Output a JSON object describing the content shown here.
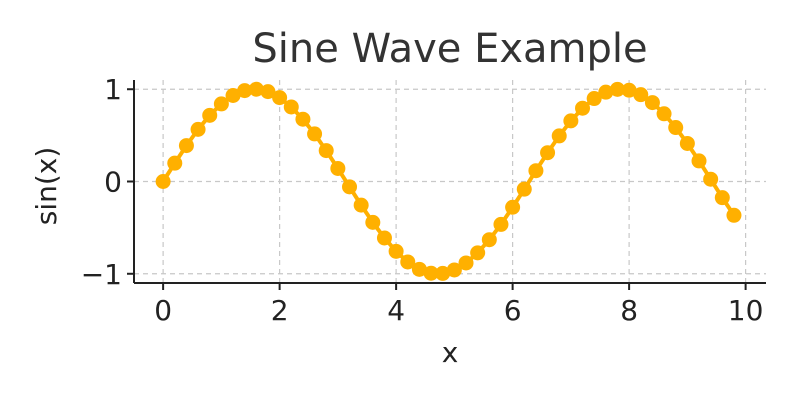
{
  "chart_data": {
    "type": "line",
    "title": "Sine Wave Example",
    "xlabel": "x",
    "ylabel": "sin(x)",
    "xlim": [
      -0.5,
      10.35
    ],
    "ylim": [
      -1.1,
      1.1
    ],
    "xticks": [
      0,
      2,
      4,
      6,
      8,
      10
    ],
    "xtick_labels": [
      "0",
      "2",
      "4",
      "6",
      "8",
      "10"
    ],
    "yticks": [
      -1,
      0,
      1
    ],
    "ytick_labels": [
      "−1",
      "0",
      "1"
    ],
    "grid": true,
    "colors": {
      "series": "#FFB000"
    },
    "series": [
      {
        "marker": "circle",
        "x": [
          0,
          0.2,
          0.4,
          0.6,
          0.8,
          1.0,
          1.2,
          1.4,
          1.6,
          1.8,
          2.0,
          2.2,
          2.4,
          2.6,
          2.8,
          3.0,
          3.2,
          3.4,
          3.6,
          3.8,
          4.0,
          4.2,
          4.4,
          4.6,
          4.8,
          5.0,
          5.2,
          5.4,
          5.6,
          5.8,
          6.0,
          6.2,
          6.4,
          6.6,
          6.8,
          7.0,
          7.2,
          7.4,
          7.6,
          7.8,
          8.0,
          8.2,
          8.4,
          8.6,
          8.8,
          9.0,
          9.2,
          9.4,
          9.6,
          9.8
        ],
        "y": [
          0.0,
          0.199,
          0.389,
          0.565,
          0.717,
          0.841,
          0.932,
          0.985,
          1.0,
          0.974,
          0.909,
          0.808,
          0.675,
          0.516,
          0.335,
          0.141,
          -0.058,
          -0.256,
          -0.443,
          -0.612,
          -0.757,
          -0.872,
          -0.952,
          -0.994,
          -0.996,
          -0.959,
          -0.883,
          -0.773,
          -0.631,
          -0.465,
          -0.279,
          -0.083,
          0.117,
          0.312,
          0.494,
          0.657,
          0.794,
          0.899,
          0.968,
          0.999,
          0.989,
          0.941,
          0.855,
          0.734,
          0.585,
          0.412,
          0.223,
          0.025,
          -0.175,
          -0.366
        ]
      }
    ]
  }
}
